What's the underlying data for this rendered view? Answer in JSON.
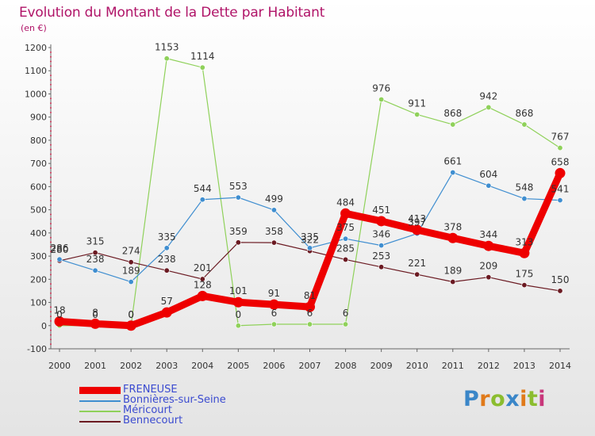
{
  "chart_data": {
    "type": "line",
    "title": "Evolution du Montant de la Dette par Habitant",
    "subtitle": "(en €)",
    "xlabel": "",
    "ylabel": "",
    "categories": [
      "2000",
      "2001",
      "2002",
      "2003",
      "2004",
      "2005",
      "2006",
      "2007",
      "2008",
      "2009",
      "2010",
      "2011",
      "2012",
      "2013",
      "2014"
    ],
    "ylim": [
      -100,
      1200
    ],
    "yticks": [
      "-100",
      "0",
      "100",
      "200",
      "300",
      "400",
      "500",
      "600",
      "700",
      "800",
      "900",
      "1000",
      "1100",
      "1200"
    ],
    "grid": false,
    "legend_position": "bottom-left",
    "series": [
      {
        "name": "FRENEUSE",
        "color": "#ee0000",
        "values": [
          18,
          8,
          0,
          57,
          128,
          101,
          91,
          81,
          484,
          451,
          413,
          378,
          344,
          313,
          658
        ],
        "labels": [
          "18",
          "8",
          "0",
          "57",
          "128",
          "101",
          "91",
          "81",
          "484",
          "451",
          "413",
          "378",
          "344",
          "313",
          "658"
        ]
      },
      {
        "name": "Bonnières-sur-Seine",
        "color": "#3f8ed0",
        "values": [
          286,
          238,
          189,
          335,
          544,
          553,
          499,
          335,
          375,
          346,
          397,
          661,
          604,
          548,
          541
        ],
        "labels": [
          "286",
          "238",
          "189",
          "335",
          "544",
          "553",
          "499",
          "335",
          "375",
          "346",
          "397",
          "661",
          "604",
          "548",
          "541"
        ]
      },
      {
        "name": "Méricourt",
        "color": "#8fd15a",
        "values": [
          0,
          0,
          0,
          1153,
          1114,
          0,
          6,
          6,
          6,
          976,
          911,
          868,
          942,
          868,
          767
        ],
        "labels": [
          "0",
          "0",
          "0",
          "1153",
          "1114",
          "0",
          "6",
          "6",
          "6",
          "976",
          "911",
          "868",
          "942",
          "868",
          "767"
        ]
      },
      {
        "name": "Bennecourt",
        "color": "#6b1a22",
        "values": [
          280,
          315,
          274,
          238,
          201,
          359,
          358,
          322,
          285,
          253,
          221,
          189,
          209,
          175,
          150
        ],
        "labels": [
          "280",
          "315",
          "274",
          "238",
          "201",
          "359",
          "358",
          "322",
          "285",
          "253",
          "221",
          "189",
          "209",
          "175",
          "150"
        ]
      }
    ]
  },
  "brand": {
    "letters": [
      "P",
      "r",
      "o",
      "x",
      "i",
      "t",
      "i"
    ]
  }
}
